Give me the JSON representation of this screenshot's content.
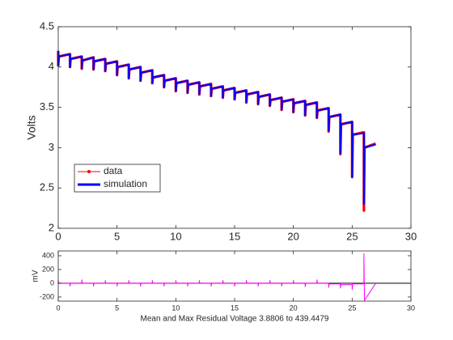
{
  "chart_data": [
    {
      "type": "line",
      "ylabel": "Volts",
      "x": [
        0,
        0,
        0.05,
        1,
        1,
        1.05,
        2,
        2,
        2.05,
        3,
        3,
        3.05,
        4,
        4,
        4.05,
        5,
        5,
        5.05,
        6,
        6,
        6.05,
        7,
        7,
        7.05,
        8,
        8,
        8.05,
        9,
        9,
        9.05,
        10,
        10,
        10.05,
        11,
        11,
        11.05,
        12,
        12,
        12.05,
        13,
        13,
        13.05,
        14,
        14,
        14.05,
        15,
        15,
        15.05,
        16,
        16,
        16.05,
        17,
        17,
        17.05,
        18,
        18,
        18.05,
        19,
        19,
        19.05,
        20,
        20,
        20.05,
        21,
        21,
        21.05,
        22,
        22,
        22.05,
        23,
        23,
        23.05,
        24,
        24,
        24.05,
        25,
        25,
        25.05,
        26,
        26,
        26.05,
        27
      ],
      "series": [
        {
          "name": "data",
          "color": "#ff0000",
          "values": [
            4.2,
            4.02,
            4.13,
            4.16,
            4.0,
            4.1,
            4.13,
            3.98,
            4.08,
            4.12,
            3.97,
            4.07,
            4.1,
            3.95,
            4.04,
            4.07,
            3.9,
            4.0,
            4.03,
            3.86,
            3.97,
            4.0,
            3.83,
            3.93,
            3.96,
            3.8,
            3.87,
            3.9,
            3.75,
            3.83,
            3.86,
            3.7,
            3.8,
            3.83,
            3.68,
            3.78,
            3.81,
            3.66,
            3.76,
            3.79,
            3.64,
            3.73,
            3.76,
            3.62,
            3.71,
            3.74,
            3.6,
            3.68,
            3.71,
            3.56,
            3.66,
            3.69,
            3.54,
            3.63,
            3.66,
            3.52,
            3.59,
            3.62,
            3.47,
            3.57,
            3.6,
            3.44,
            3.55,
            3.58,
            3.4,
            3.53,
            3.56,
            3.37,
            3.46,
            3.49,
            3.2,
            3.38,
            3.41,
            2.92,
            3.29,
            3.32,
            2.64,
            3.16,
            3.19,
            2.22,
            3.0,
            3.05
          ]
        },
        {
          "name": "simulation",
          "color": "#0000ff",
          "values": [
            4.2,
            4.02,
            4.13,
            4.16,
            4.0,
            4.1,
            4.13,
            3.98,
            4.08,
            4.12,
            3.97,
            4.07,
            4.1,
            3.95,
            4.04,
            4.07,
            3.9,
            4.0,
            4.03,
            3.86,
            3.97,
            4.0,
            3.83,
            3.93,
            3.96,
            3.8,
            3.87,
            3.9,
            3.75,
            3.83,
            3.86,
            3.7,
            3.8,
            3.83,
            3.68,
            3.78,
            3.81,
            3.66,
            3.76,
            3.79,
            3.64,
            3.73,
            3.76,
            3.62,
            3.71,
            3.74,
            3.6,
            3.68,
            3.71,
            3.56,
            3.66,
            3.69,
            3.54,
            3.63,
            3.66,
            3.52,
            3.59,
            3.62,
            3.47,
            3.57,
            3.6,
            3.44,
            3.55,
            3.58,
            3.4,
            3.53,
            3.56,
            3.37,
            3.46,
            3.49,
            3.21,
            3.38,
            3.41,
            2.93,
            3.29,
            3.32,
            2.63,
            3.16,
            3.18,
            2.3,
            3.0,
            3.04
          ]
        }
      ],
      "xlim": [
        0,
        30
      ],
      "xticks": [
        0,
        5,
        10,
        15,
        20,
        25,
        30
      ],
      "ylim": [
        2,
        4.5
      ],
      "yticks": [
        2,
        2.5,
        3,
        3.5,
        4,
        4.5
      ],
      "legend": "lower left"
    },
    {
      "type": "line",
      "ylabel": "mV",
      "xlabel": "Mean and Max Residual Voltage 3.8806 to 439.4479",
      "x": [
        0,
        0,
        0.05,
        1,
        1,
        1.05,
        2,
        2,
        2.05,
        3,
        3,
        3.05,
        4,
        4,
        4.05,
        5,
        5,
        5.05,
        6,
        6,
        6.05,
        7,
        7,
        7.05,
        8,
        8,
        8.05,
        9,
        9,
        9.05,
        10,
        10,
        10.05,
        11,
        11,
        11.05,
        12,
        12,
        12.05,
        13,
        13,
        13.05,
        14,
        14,
        14.05,
        15,
        15,
        15.05,
        16,
        16,
        16.05,
        17,
        17,
        17.05,
        18,
        18,
        18.05,
        19,
        19,
        19.05,
        20,
        20,
        20.05,
        21,
        21,
        21.05,
        22,
        22,
        22.05,
        23,
        23,
        23.05,
        24,
        24,
        24.05,
        25,
        25,
        25.05,
        26,
        26,
        26.05,
        27
      ],
      "series": [
        {
          "color": "#ff00ff",
          "values": [
            0,
            40,
            0,
            0,
            -40,
            0,
            0,
            50,
            0,
            0,
            -40,
            0,
            0,
            40,
            0,
            0,
            -40,
            0,
            0,
            40,
            0,
            0,
            -40,
            0,
            0,
            40,
            0,
            0,
            -40,
            0,
            0,
            40,
            0,
            0,
            -40,
            0,
            0,
            40,
            0,
            0,
            -40,
            0,
            0,
            40,
            0,
            0,
            -40,
            0,
            0,
            40,
            0,
            0,
            -40,
            0,
            0,
            40,
            0,
            0,
            -40,
            0,
            0,
            40,
            0,
            0,
            -50,
            0,
            0,
            50,
            0,
            0,
            -60,
            -10,
            -10,
            -70,
            -20,
            -20,
            -90,
            -10,
            -10,
            430,
            -250,
            0
          ]
        }
      ],
      "hline": {
        "value": 0,
        "color": "#000000"
      },
      "xlim": [
        0,
        30
      ],
      "xticks": [
        0,
        5,
        10,
        15,
        20,
        25,
        30
      ],
      "ylim": [
        -260,
        470
      ],
      "yticks": [
        -200,
        0,
        200,
        400
      ]
    }
  ]
}
